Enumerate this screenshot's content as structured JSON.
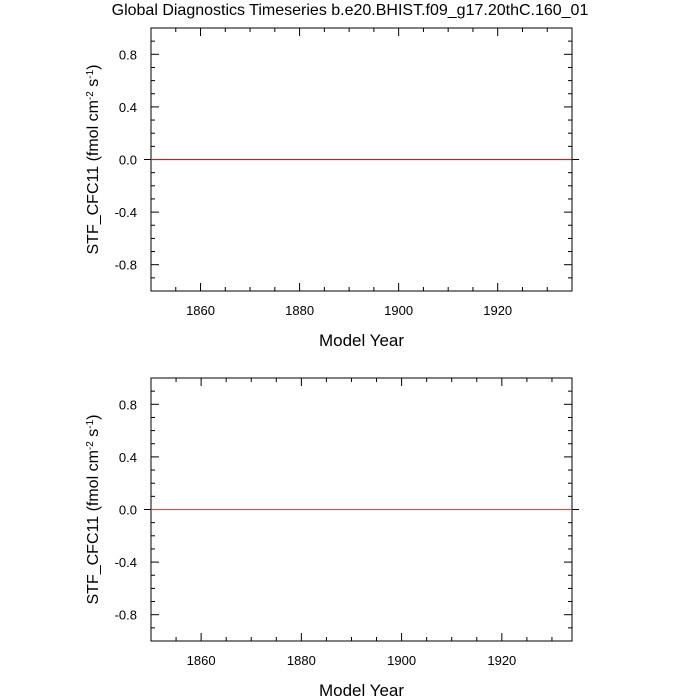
{
  "title": "Global Diagnostics Timeseries b.e20.BHIST.f09_g17.20thC.160_01",
  "chart_data": [
    {
      "type": "line",
      "title": "",
      "xlabel": "Model Year",
      "ylabel": {
        "base": "STF_CFC11 (fmol cm",
        "sup1": "-2",
        "mid": " s",
        "sup2": "-1",
        "end": ")"
      },
      "xlim": [
        1850,
        1935
      ],
      "ylim": [
        -1.0,
        1.0
      ],
      "x_ticks": [
        1860,
        1880,
        1900,
        1920
      ],
      "x_tick_labels": [
        "1860",
        "1880",
        "1900",
        "1920"
      ],
      "y_ticks": [
        -0.8,
        -0.4,
        0.0,
        0.4,
        0.8
      ],
      "y_tick_labels": [
        "-0.8",
        "-0.4",
        "0.0",
        "0.4",
        "0.8"
      ],
      "zero_line": true,
      "series": [
        {
          "color": "#8b3a3a",
          "x": [
            1850,
            1935
          ],
          "y": [
            0.0,
            0.0
          ]
        }
      ]
    },
    {
      "type": "line",
      "title": "",
      "xlabel": "Model Year",
      "ylabel": {
        "base": "STF_CFC11 (fmol cm",
        "sup1": "-2",
        "mid": " s",
        "sup2": "-1",
        "end": ")"
      },
      "xlim": [
        1850,
        1934
      ],
      "ylim": [
        -1.0,
        1.0
      ],
      "x_ticks": [
        1860,
        1880,
        1900,
        1920
      ],
      "x_tick_labels": [
        "1860",
        "1880",
        "1900",
        "1920"
      ],
      "y_ticks": [
        -0.8,
        -0.4,
        0.0,
        0.4,
        0.8
      ],
      "y_tick_labels": [
        "-0.8",
        "-0.4",
        "0.0",
        "0.4",
        "0.8"
      ],
      "zero_line": true,
      "series": [
        {
          "color": "#b56060",
          "x": [
            1850,
            1934
          ],
          "y": [
            0.0,
            0.0
          ]
        }
      ]
    }
  ]
}
